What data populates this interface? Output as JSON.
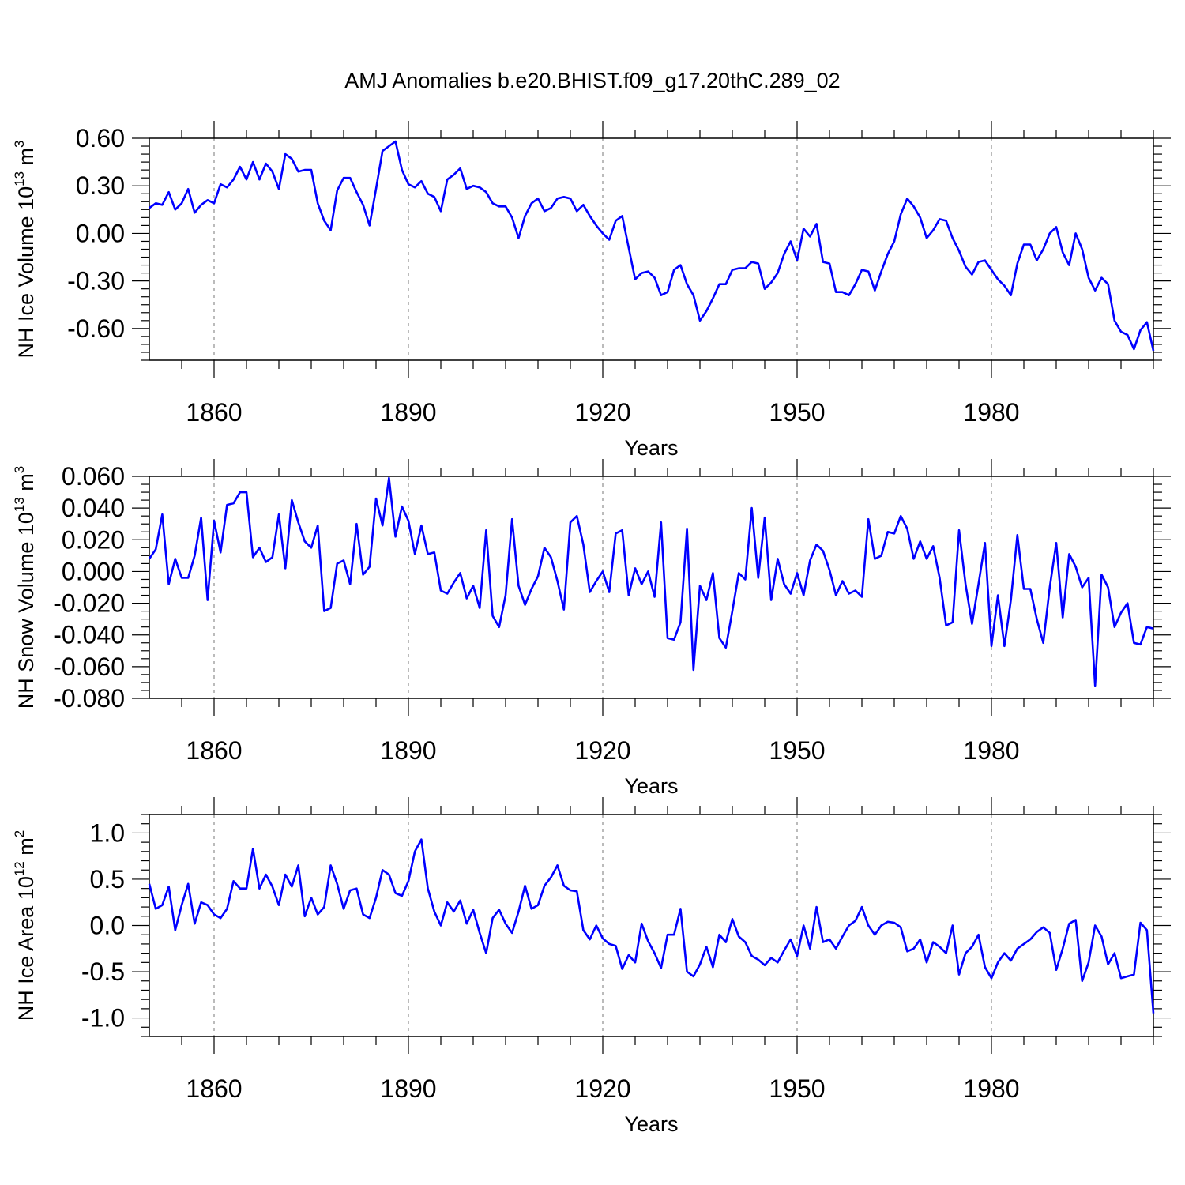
{
  "figure_title": "AMJ Anomalies b.e20.BHIST.f09_g17.20thC.289_02",
  "colors": {
    "line": "#0000ff",
    "axis": "#000000",
    "grid": "#777777",
    "background": "#ffffff"
  },
  "chart_data": [
    {
      "type": "line",
      "title": "AMJ Anomalies b.e20.BHIST.f09_g17.20thC.289_02",
      "xlabel": "Years",
      "ylabel": {
        "base": "NH Ice Volume 10",
        "exp": "13",
        "unit": " m",
        "unit_exp": "3"
      },
      "xlim": [
        1850,
        2005
      ],
      "ylim": [
        -0.8,
        0.6
      ],
      "x_ticks": [
        1860,
        1890,
        1920,
        1950,
        1980
      ],
      "x_tick_labels": [
        "1860",
        "1890",
        "1920",
        "1950",
        "1980"
      ],
      "y_ticks": [
        0.6,
        0.3,
        0.0,
        -0.3,
        -0.6
      ],
      "y_tick_labels": [
        "0.60",
        "0.30",
        "0.00",
        "-0.30",
        "-0.60"
      ],
      "grid": "vertical dashed at major x ticks",
      "series": [
        {
          "name": "NH Ice Volume",
          "x_start": 1850,
          "values": [
            0.16,
            0.19,
            0.18,
            0.26,
            0.15,
            0.19,
            0.28,
            0.13,
            0.18,
            0.21,
            0.19,
            0.31,
            0.29,
            0.34,
            0.42,
            0.34,
            0.45,
            0.34,
            0.44,
            0.39,
            0.28,
            0.5,
            0.47,
            0.39,
            0.4,
            0.4,
            0.19,
            0.08,
            0.02,
            0.27,
            0.35,
            0.35,
            0.26,
            0.18,
            0.05,
            0.28,
            0.52,
            0.55,
            0.58,
            0.4,
            0.31,
            0.29,
            0.33,
            0.25,
            0.23,
            0.14,
            0.34,
            0.37,
            0.41,
            0.28,
            0.3,
            0.29,
            0.26,
            0.19,
            0.17,
            0.17,
            0.1,
            -0.03,
            0.11,
            0.19,
            0.22,
            0.14,
            0.16,
            0.22,
            0.23,
            0.22,
            0.14,
            0.18,
            0.11,
            0.05,
            0.0,
            -0.04,
            0.08,
            0.11,
            -0.09,
            -0.29,
            -0.25,
            -0.24,
            -0.28,
            -0.39,
            -0.37,
            -0.23,
            -0.2,
            -0.32,
            -0.39,
            -0.55,
            -0.49,
            -0.41,
            -0.32,
            -0.32,
            -0.23,
            -0.22,
            -0.22,
            -0.18,
            -0.19,
            -0.35,
            -0.31,
            -0.25,
            -0.13,
            -0.05,
            -0.17,
            0.03,
            -0.02,
            0.06,
            -0.18,
            -0.19,
            -0.37,
            -0.37,
            -0.39,
            -0.32,
            -0.23,
            -0.24,
            -0.36,
            -0.24,
            -0.13,
            -0.05,
            0.12,
            0.22,
            0.17,
            0.1,
            -0.03,
            0.02,
            0.09,
            0.08,
            -0.03,
            -0.11,
            -0.21,
            -0.26,
            -0.18,
            -0.17,
            -0.23,
            -0.29,
            -0.33,
            -0.39,
            -0.19,
            -0.07,
            -0.07,
            -0.17,
            -0.1,
            0.0,
            0.04,
            -0.12,
            -0.2,
            0.0,
            -0.1,
            -0.28,
            -0.36,
            -0.28,
            -0.32,
            -0.55,
            -0.62,
            -0.64,
            -0.73,
            -0.61,
            -0.56,
            -0.74
          ]
        }
      ]
    },
    {
      "type": "line",
      "xlabel": "Years",
      "ylabel": {
        "base": "NH Snow Volume 10",
        "exp": "13",
        "unit": " m",
        "unit_exp": "3"
      },
      "xlim": [
        1850,
        2005
      ],
      "ylim": [
        -0.08,
        0.06
      ],
      "x_ticks": [
        1860,
        1890,
        1920,
        1950,
        1980
      ],
      "x_tick_labels": [
        "1860",
        "1890",
        "1920",
        "1950",
        "1980"
      ],
      "y_ticks": [
        0.06,
        0.04,
        0.02,
        0.0,
        -0.02,
        -0.04,
        -0.06,
        -0.08
      ],
      "y_tick_labels": [
        "0.060",
        "0.040",
        "0.020",
        "0.000",
        "-0.020",
        "-0.040",
        "-0.060",
        "-0.080"
      ],
      "grid": "vertical dashed at major x ticks",
      "series": [
        {
          "name": "NH Snow Volume",
          "x_start": 1850,
          "values": [
            0.008,
            0.014,
            0.036,
            -0.008,
            0.008,
            -0.004,
            -0.004,
            0.01,
            0.034,
            -0.018,
            0.032,
            0.012,
            0.042,
            0.043,
            0.05,
            0.05,
            0.009,
            0.015,
            0.006,
            0.009,
            0.036,
            0.002,
            0.045,
            0.031,
            0.019,
            0.015,
            0.029,
            -0.025,
            -0.023,
            0.005,
            0.007,
            -0.008,
            0.03,
            -0.002,
            0.003,
            0.046,
            0.029,
            0.059,
            0.022,
            0.041,
            0.032,
            0.011,
            0.029,
            0.011,
            0.012,
            -0.012,
            -0.014,
            -0.007,
            -0.001,
            -0.017,
            -0.009,
            -0.023,
            0.026,
            -0.028,
            -0.035,
            -0.015,
            0.033,
            -0.009,
            -0.021,
            -0.011,
            -0.003,
            0.015,
            0.009,
            -0.006,
            -0.024,
            0.031,
            0.035,
            0.017,
            -0.013,
            -0.006,
            0.0,
            -0.013,
            0.024,
            0.026,
            -0.015,
            0.002,
            -0.008,
            0.0,
            -0.016,
            0.031,
            -0.042,
            -0.043,
            -0.032,
            0.027,
            -0.062,
            -0.009,
            -0.018,
            -0.001,
            -0.042,
            -0.048,
            -0.025,
            -0.001,
            -0.005,
            0.04,
            -0.004,
            0.034,
            -0.018,
            0.008,
            -0.008,
            -0.014,
            -0.001,
            -0.015,
            0.007,
            0.017,
            0.013,
            0.001,
            -0.015,
            -0.006,
            -0.014,
            -0.012,
            -0.016,
            0.033,
            0.008,
            0.01,
            0.025,
            0.024,
            0.035,
            0.027,
            0.008,
            0.019,
            0.008,
            0.016,
            -0.004,
            -0.034,
            -0.032,
            0.026,
            -0.008,
            -0.033,
            -0.008,
            0.018,
            -0.047,
            -0.015,
            -0.047,
            -0.018,
            0.023,
            -0.011,
            -0.011,
            -0.03,
            -0.045,
            -0.01,
            0.018,
            -0.029,
            0.011,
            0.003,
            -0.01,
            -0.004,
            -0.072,
            -0.002,
            -0.01,
            -0.035,
            -0.026,
            -0.02,
            -0.045,
            -0.046,
            -0.035,
            -0.036
          ]
        }
      ]
    },
    {
      "type": "line",
      "xlabel": "Years",
      "ylabel": {
        "base": "NH Ice Area 10",
        "exp": "12",
        "unit": " m",
        "unit_exp": "2"
      },
      "xlim": [
        1850,
        2005
      ],
      "ylim": [
        -1.2,
        1.2
      ],
      "x_ticks": [
        1860,
        1890,
        1920,
        1950,
        1980
      ],
      "x_tick_labels": [
        "1860",
        "1890",
        "1920",
        "1950",
        "1980"
      ],
      "y_ticks": [
        1.0,
        0.5,
        0.0,
        -0.5,
        -1.0
      ],
      "y_tick_labels": [
        "1.0",
        "0.5",
        "0.0",
        "-0.5",
        "-1.0"
      ],
      "grid": "vertical dashed at major x ticks",
      "series": [
        {
          "name": "NH Ice Area",
          "x_start": 1850,
          "values": [
            0.45,
            0.18,
            0.22,
            0.42,
            -0.05,
            0.22,
            0.45,
            0.02,
            0.25,
            0.22,
            0.12,
            0.08,
            0.18,
            0.48,
            0.4,
            0.4,
            0.83,
            0.4,
            0.55,
            0.42,
            0.22,
            0.55,
            0.42,
            0.65,
            0.1,
            0.3,
            0.12,
            0.2,
            0.65,
            0.45,
            0.18,
            0.38,
            0.4,
            0.12,
            0.08,
            0.3,
            0.6,
            0.55,
            0.35,
            0.32,
            0.48,
            0.8,
            0.93,
            0.4,
            0.15,
            0.0,
            0.25,
            0.15,
            0.27,
            0.02,
            0.17,
            -0.08,
            -0.3,
            0.08,
            0.17,
            0.02,
            -0.08,
            0.15,
            0.43,
            0.18,
            0.22,
            0.43,
            0.52,
            0.65,
            0.43,
            0.38,
            0.37,
            -0.05,
            -0.15,
            0.0,
            -0.14,
            -0.2,
            -0.22,
            -0.47,
            -0.32,
            -0.4,
            0.02,
            -0.17,
            -0.3,
            -0.46,
            -0.1,
            -0.1,
            0.18,
            -0.5,
            -0.55,
            -0.42,
            -0.23,
            -0.45,
            -0.1,
            -0.18,
            0.07,
            -0.12,
            -0.18,
            -0.33,
            -0.37,
            -0.43,
            -0.35,
            -0.4,
            -0.27,
            -0.15,
            -0.33,
            0.0,
            -0.25,
            0.2,
            -0.18,
            -0.15,
            -0.25,
            -0.12,
            0.0,
            0.05,
            0.2,
            0.0,
            -0.1,
            0.0,
            0.04,
            0.03,
            -0.02,
            -0.28,
            -0.25,
            -0.15,
            -0.4,
            -0.18,
            -0.23,
            -0.3,
            0.0,
            -0.53,
            -0.3,
            -0.23,
            -0.1,
            -0.45,
            -0.57,
            -0.4,
            -0.3,
            -0.38,
            -0.25,
            -0.2,
            -0.15,
            -0.07,
            -0.02,
            -0.08,
            -0.48,
            -0.25,
            0.02,
            0.06,
            -0.6,
            -0.4,
            0.0,
            -0.12,
            -0.42,
            -0.3,
            -0.57,
            -0.55,
            -0.53,
            0.03,
            -0.05,
            -0.95
          ]
        }
      ]
    }
  ]
}
